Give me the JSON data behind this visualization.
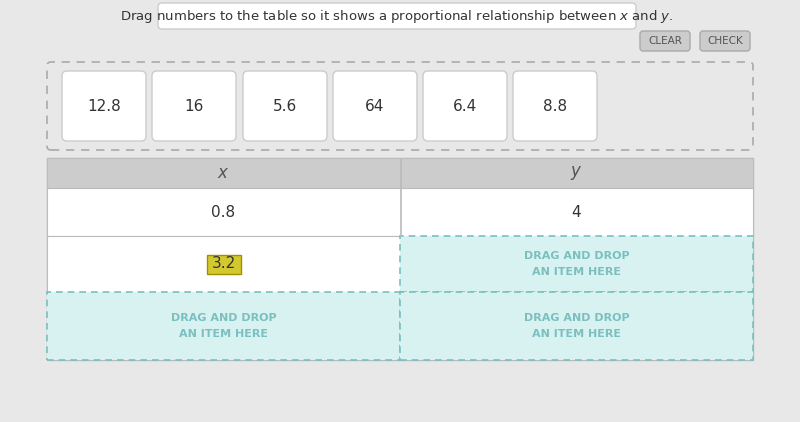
{
  "bg_color": "#e8e8e8",
  "cards": [
    "12.8",
    "16",
    "5.6",
    "64",
    "6.4",
    "8.8"
  ],
  "card_bg": "#ffffff",
  "card_border": "#cccccc",
  "table_header_bg": "#cccccc",
  "table_header_text": "#555555",
  "table_row1_bg": "#ffffff",
  "table_row2_left_bg": "#ffffff",
  "drag_drop_bg": "#d8f2f2",
  "drag_drop_text": "#7bbfbf",
  "drag_drop_border": "#7bbfbf",
  "cell_x1": "0.8",
  "cell_y1": "4",
  "cell_x2": "3.2",
  "cell_x2_bg": "#d4c830",
  "cell_x2_text": "#333333",
  "button_clear_bg": "#cccccc",
  "button_check_bg": "#cccccc",
  "button_text": "#555555",
  "title_full": "Drag numbers to the table so it shows a proportional relationship between $x$ and $y$."
}
